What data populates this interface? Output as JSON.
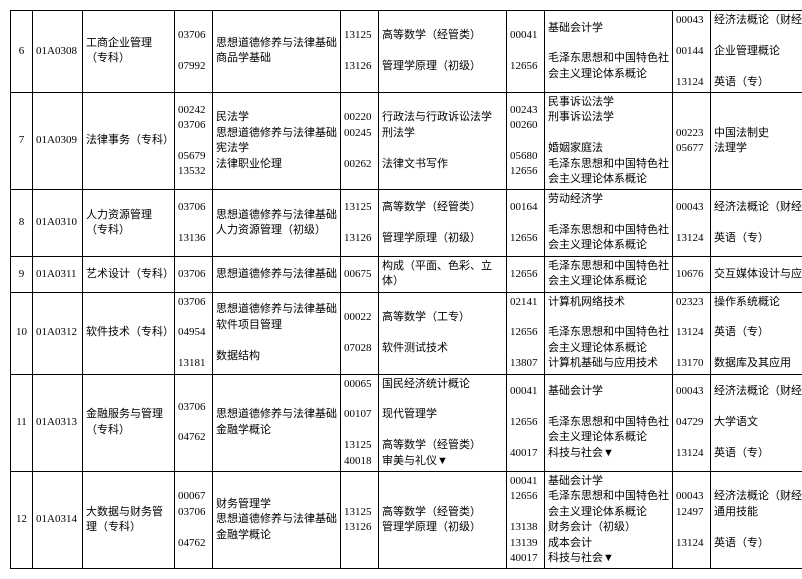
{
  "rows": [
    {
      "num": "6",
      "id": "01A0308",
      "major": "工商企业管理（专科）",
      "g1_codes": "03706\n\n07992",
      "g1_courses": "思想道德修养与法律基础\n商品学基础",
      "g2_codes": "13125\n\n13126",
      "g2_courses": "高等数学（经管类）\n\n管理学原理（初级）",
      "g3_codes": "00041\n\n12656",
      "g3_courses": "基础会计学\n\n毛泽东思想和中国特色社会主义理论体系概论",
      "g4_codes": "00043\n\n00144\n\n13124",
      "g4_courses": "经济法概论（财经类）\n\n企业管理概论\n\n英语（专）"
    },
    {
      "num": "7",
      "id": "01A0309",
      "major": "法律事务（专科）",
      "g1_codes": "00242\n03706\n\n05679\n13532",
      "g1_courses": "民法学\n思想道德修养与法律基础\n宪法学\n法律职业伦理",
      "g2_codes": "00220\n00245\n\n00262",
      "g2_courses": "行政法与行政诉讼法学\n刑法学\n\n法律文书写作",
      "g3_codes": "00243\n00260\n\n05680\n12656",
      "g3_courses": "民事诉讼法学\n刑事诉讼法学\n\n婚姻家庭法\n毛泽东思想和中国特色社会主义理论体系概论",
      "g4_codes": "00223\n05677",
      "g4_courses": "中国法制史\n法理学"
    },
    {
      "num": "8",
      "id": "01A0310",
      "major": "人力资源管理（专科）",
      "g1_codes": "03706\n\n13136",
      "g1_courses": "思想道德修养与法律基础\n人力资源管理（初级）",
      "g2_codes": "13125\n\n13126",
      "g2_courses": "高等数学（经管类）\n\n管理学原理（初级）",
      "g3_codes": "00164\n\n12656",
      "g3_courses": "劳动经济学\n\n毛泽东思想和中国特色社会主义理论体系概论",
      "g4_codes": "00043\n\n13124",
      "g4_courses": "经济法概论（财经类）\n\n英语（专）"
    },
    {
      "num": "9",
      "id": "01A0311",
      "major": "艺术设计（专科）",
      "g1_codes": "03706",
      "g1_courses": "思想道德修养与法律基础",
      "g2_codes": "00675",
      "g2_courses": "构成（平面、色彩、立体）",
      "g3_codes": "12656",
      "g3_courses": "毛泽东思想和中国特色社会主义理论体系概论",
      "g4_codes": "10676",
      "g4_courses": "交互媒体设计与应用"
    },
    {
      "num": "10",
      "id": "01A0312",
      "major": "软件技术（专科）",
      "g1_codes": "03706\n\n04954\n\n13181",
      "g1_courses": "思想道德修养与法律基础\n软件项目管理\n\n数据结构",
      "g2_codes": "00022\n\n07028",
      "g2_courses": "高等数学（工专）\n\n软件测试技术",
      "g3_codes": "02141\n\n12656\n\n13807",
      "g3_courses": "计算机网络技术\n\n毛泽东思想和中国特色社会主义理论体系概论\n计算机基础与应用技术",
      "g4_codes": "02323\n\n13124\n\n13170",
      "g4_courses": "操作系统概论\n\n英语（专）\n\n数据库及其应用"
    },
    {
      "num": "11",
      "id": "01A0313",
      "major": "金融服务与管理（专科）",
      "g1_codes": "03706\n\n04762",
      "g1_courses": "思想道德修养与法律基础\n金融学概论",
      "g2_codes": "00065\n\n00107\n\n13125\n40018",
      "g2_courses": "国民经济统计概论\n\n现代管理学\n\n高等数学（经管类）\n审美与礼仪▼",
      "g3_codes": "00041\n\n12656\n\n40017",
      "g3_courses": "基础会计学\n\n毛泽东思想和中国特色社会主义理论体系概论\n科技与社会▼",
      "g4_codes": "00043\n\n04729\n\n13124",
      "g4_courses": "经济法概论（财经类）\n\n大学语文\n\n英语（专）"
    },
    {
      "num": "12",
      "id": "01A0314",
      "major": "大数据与财务管理（专科）",
      "g1_codes": "00067\n03706\n\n04762",
      "g1_courses": "财务管理学\n思想道德修养与法律基础\n金融学概论",
      "g2_codes": "13125\n13126",
      "g2_courses": "高等数学（经管类）\n管理学原理（初级）",
      "g3_codes": "00041\n12656\n\n13138\n13139\n40017",
      "g3_courses": "基础会计学\n毛泽东思想和中国特色社会主义理论体系概论\n财务会计（初级）\n成本会计\n科技与社会▼",
      "g4_codes": "00043\n12497\n\n13124",
      "g4_courses": "经济法概论（财经类）\n通用技能\n\n英语（专）"
    }
  ]
}
